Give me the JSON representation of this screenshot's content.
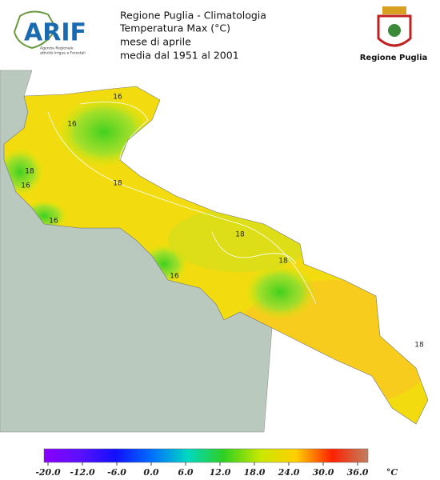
{
  "header": {
    "lines": [
      "Regione Puglia - Climatologia",
      "Temperatura Max (°C)",
      "mese di aprile",
      "media dal 1951 al 2001"
    ]
  },
  "logo": {
    "name": "ARIF",
    "subtitle": [
      "Agenzia Regionale",
      "attività Irrigue e Forestali"
    ]
  },
  "emblem": {
    "label": "Regione Puglia"
  },
  "map": {
    "contour_labels": [
      "16",
      "16",
      "18",
      "16",
      "16",
      "18",
      "18",
      "16",
      "18",
      "18"
    ]
  },
  "legend": {
    "ticks": [
      {
        "value": -20,
        "label": "-20.0"
      },
      {
        "value": -12,
        "label": "-12.0"
      },
      {
        "value": -6,
        "label": "-6.0"
      },
      {
        "value": 0,
        "label": "0.0"
      },
      {
        "value": 6,
        "label": "6.0"
      },
      {
        "value": 12,
        "label": "12.0"
      },
      {
        "value": 18,
        "label": "18.0"
      },
      {
        "value": 24,
        "label": "24.0"
      },
      {
        "value": 30,
        "label": "30.0"
      },
      {
        "value": 36,
        "label": "36.0"
      }
    ],
    "colors": [
      "#8a00ff",
      "#5a10ff",
      "#1010ff",
      "#0070ff",
      "#00d8c0",
      "#30d020",
      "#c8e800",
      "#ffd000",
      "#ff2000",
      "#c08060"
    ],
    "unit": "°C"
  }
}
